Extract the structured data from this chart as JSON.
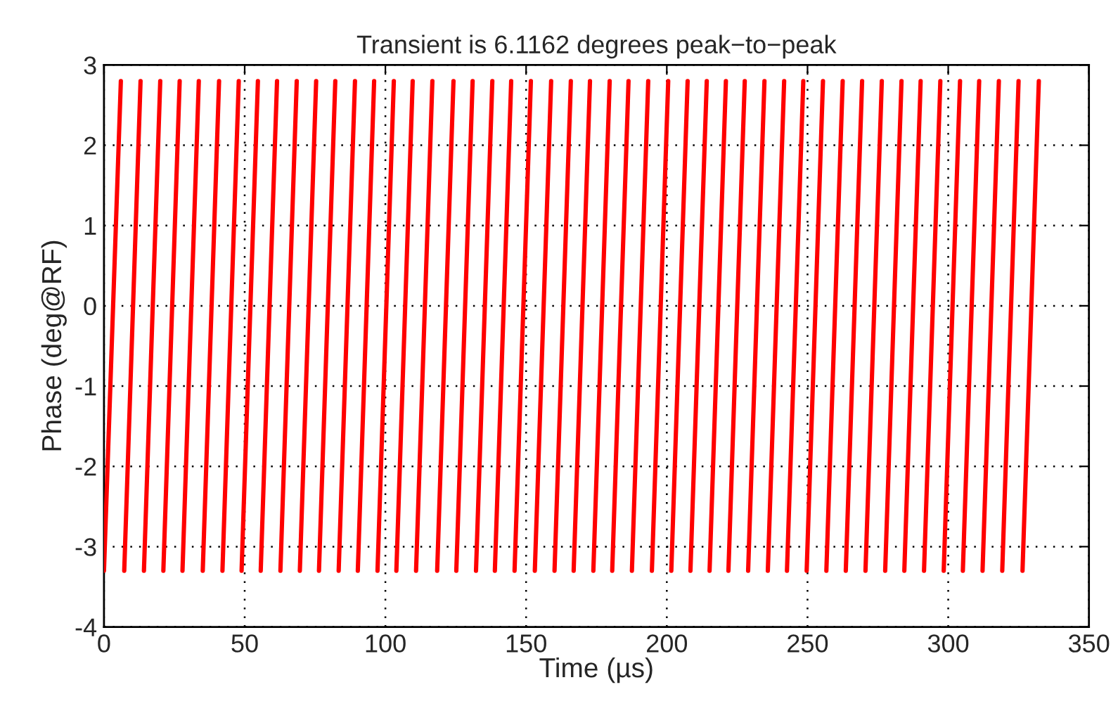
{
  "chart_data": {
    "type": "line",
    "title": "Transient is 6.1162 degrees peak−to−peak",
    "xlabel": "Time (µs)",
    "ylabel": "Phase (deg@RF)",
    "series": [
      {
        "color": "#ff0000",
        "x": [
          0,
          6,
          null,
          7.2,
          13,
          null,
          14.2,
          20,
          null,
          21.1,
          26.9,
          null,
          27.9,
          33.7,
          null,
          35.1,
          40.9,
          null,
          42.1,
          47.9,
          null,
          48.9,
          54.7,
          null,
          55.7,
          61.5,
          null,
          62.7,
          68.5,
          null,
          69.6,
          75.4,
          null,
          76.4,
          82.2,
          null,
          83.4,
          89.2,
          null,
          90.2,
          96,
          null,
          97.2,
          103,
          null,
          103.9,
          109.7,
          null,
          110.9,
          116.7,
          null,
          118.4,
          124.2,
          null,
          125.2,
          131,
          null,
          132.2,
          138,
          null,
          138.9,
          144.7,
          null,
          145.9,
          151.7,
          null,
          153.1,
          158.9,
          null,
          160.1,
          165.9,
          null,
          166.9,
          172.7,
          null,
          173.9,
          179.7,
          null,
          180.6,
          186.4,
          null,
          187.6,
          193.4,
          null,
          194.7,
          200.5,
          null,
          201.6,
          207.4,
          null,
          208.4,
          214.2,
          null,
          215.2,
          221,
          null,
          221.9,
          227.7,
          null,
          228.9,
          234.7,
          null,
          235.9,
          241.7,
          null,
          242.7,
          248.5,
          null,
          249.7,
          255.5,
          null,
          256.7,
          262.5,
          null,
          263.6,
          269.4,
          null,
          270.6,
          276.4,
          null,
          277.6,
          283.4,
          null,
          284.4,
          290.2,
          null,
          291.4,
          297.2,
          null,
          298.4,
          304.2,
          null,
          305.2,
          311,
          null,
          312.2,
          318,
          null,
          319.2,
          325,
          null,
          326.4,
          332.2
        ],
        "values": [
          -3.3,
          2.8,
          null,
          -3.3,
          2.8,
          null,
          -3.3,
          2.8,
          null,
          -3.3,
          2.8,
          null,
          -3.3,
          2.8,
          null,
          -3.3,
          2.8,
          null,
          -3.3,
          2.8,
          null,
          -3.3,
          2.8,
          null,
          -3.3,
          2.8,
          null,
          -3.3,
          2.8,
          null,
          -3.3,
          2.8,
          null,
          -3.3,
          2.8,
          null,
          -3.3,
          2.8,
          null,
          -3.3,
          2.8,
          null,
          -3.3,
          2.8,
          null,
          -3.3,
          2.8,
          null,
          -3.3,
          2.8,
          null,
          -3.3,
          2.8,
          null,
          -3.3,
          2.8,
          null,
          -3.3,
          2.8,
          null,
          -3.3,
          2.8,
          null,
          -3.3,
          2.8,
          null,
          -3.3,
          2.8,
          null,
          -3.3,
          2.8,
          null,
          -3.3,
          2.8,
          null,
          -3.3,
          2.8,
          null,
          -3.3,
          2.8,
          null,
          -3.3,
          2.8,
          null,
          -3.3,
          2.8,
          null,
          -3.3,
          2.8,
          null,
          -3.3,
          2.8,
          null,
          -3.3,
          2.8,
          null,
          -3.3,
          2.8,
          null,
          -3.3,
          2.8,
          null,
          -3.3,
          2.8,
          null,
          -3.3,
          2.8,
          null,
          -3.3,
          2.8,
          null,
          -3.3,
          2.8,
          null,
          -3.3,
          2.8,
          null,
          -3.3,
          2.8,
          null,
          -3.3,
          2.8,
          null,
          -3.3,
          2.8,
          null,
          -3.3,
          2.8,
          null,
          -3.3,
          2.8,
          null,
          -3.3,
          2.8,
          null,
          -3.3,
          2.8,
          null,
          -3.3,
          2.8,
          null,
          -3.3,
          2.8
        ]
      }
    ],
    "xlim": [
      0,
      350
    ],
    "xticks": [
      0,
      50,
      100,
      150,
      200,
      250,
      300,
      350
    ],
    "ylim": [
      -4,
      3
    ],
    "yticks": [
      -4,
      -3,
      -2,
      -1,
      0,
      1,
      2,
      3
    ],
    "grid": true,
    "marker": "none",
    "line_style": "solid"
  }
}
